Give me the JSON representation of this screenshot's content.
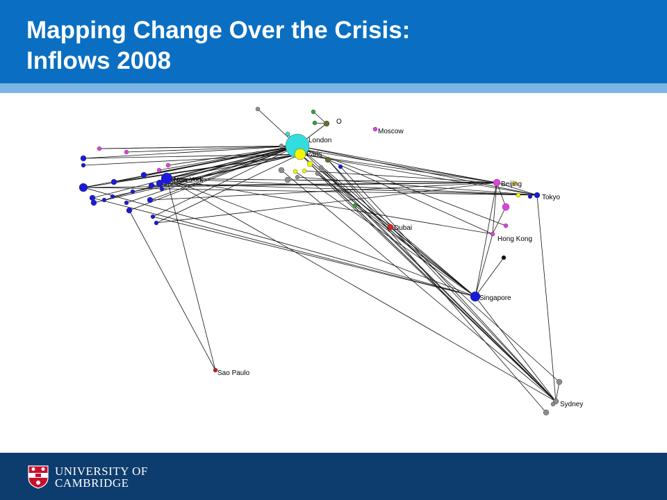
{
  "slide": {
    "title_line1": "Mapping Change Over the Crisis:",
    "title_line2": "Inflows 2008"
  },
  "network": {
    "labels": {
      "london": "London",
      "paris": "Paris",
      "new_york": "New York",
      "moscow": "Moscow",
      "beijing": "Beijing",
      "tokyo": "Tokyo",
      "hong_kong": "Hong Kong",
      "dubai": "Dubai",
      "singapore": "Singapore",
      "sao_paulo": "Sao Paulo",
      "sydney": "Sydney",
      "o_node": "O"
    },
    "colors": {
      "americas": "#1a1adb",
      "london": "#33dddd",
      "paris": "#f4f400",
      "asia": "#e040e0",
      "gray": "#8c8c8c",
      "green": "#2fa33a",
      "dubai": "#e02020",
      "sao_paulo": "#c02020",
      "olive": "#6b6b2e",
      "edge": "#111111"
    }
  },
  "footer": {
    "logo_line1": "UNIVERSITY OF",
    "logo_line2": "CAMBRIDGE",
    "shield_icon": "cambridge-shield-icon"
  }
}
